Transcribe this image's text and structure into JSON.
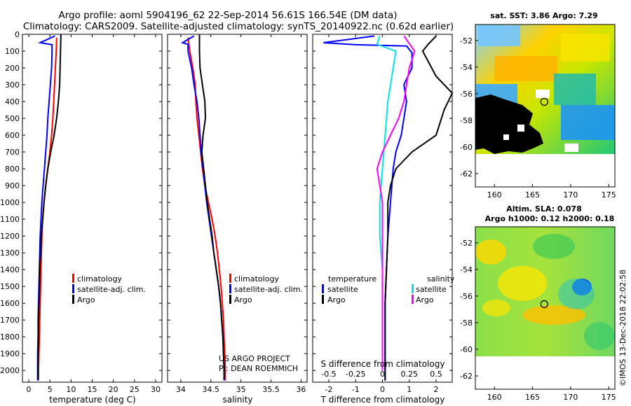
{
  "title_line1": "Argo profile: aoml 5904196_62 22-Sep-2014 56.61S 166.54E (DM data)",
  "title_line2": "Climatology: CARS2009. Satellite-adjusted climatology: synTS_20140922.nc (0.62d earlier)",
  "colors": {
    "climatology": "#ff0000",
    "satellite": "#0000ff",
    "argo": "#000000",
    "sat_salinity": "#00e5e5",
    "argo_salinity_diff": "#ff00ff"
  },
  "chart_data": [
    {
      "type": "line",
      "name": "temperature",
      "xlabel": "temperature (deg C)",
      "xlim": [
        -1.5,
        31.5
      ],
      "xticks": [
        0,
        5,
        10,
        15,
        20,
        25,
        30
      ],
      "ylim": [
        2070,
        0
      ],
      "yticks": [
        0,
        100,
        200,
        300,
        400,
        500,
        600,
        700,
        800,
        900,
        1000,
        1100,
        1200,
        1300,
        1400,
        1500,
        1600,
        1700,
        1800,
        1900,
        2000
      ],
      "legend": [
        "climatology",
        "satellite-adj. clim.",
        "Argo"
      ],
      "series": [
        {
          "name": "climatology",
          "color": "#ff0000",
          "points": [
            [
              6.6,
              20
            ],
            [
              6.5,
              100
            ],
            [
              6.3,
              200
            ],
            [
              6.1,
              300
            ],
            [
              5.9,
              400
            ],
            [
              5.7,
              500
            ],
            [
              5.4,
              600
            ],
            [
              5.0,
              700
            ],
            [
              4.5,
              800
            ],
            [
              4.0,
              900
            ],
            [
              3.6,
              1000
            ],
            [
              3.3,
              1100
            ],
            [
              3.1,
              1200
            ],
            [
              3.0,
              1300
            ],
            [
              2.9,
              1400
            ],
            [
              2.8,
              1500
            ],
            [
              2.7,
              1600
            ],
            [
              2.6,
              1700
            ],
            [
              2.5,
              1800
            ],
            [
              2.4,
              1900
            ],
            [
              2.3,
              2000
            ],
            [
              2.3,
              2060
            ]
          ]
        },
        {
          "name": "satellite-adj. clim.",
          "color": "#0000ff",
          "points": [
            [
              6.2,
              10
            ],
            [
              2.7,
              50
            ],
            [
              5.5,
              62
            ],
            [
              5.5,
              100
            ],
            [
              5.4,
              200
            ],
            [
              5.1,
              300
            ],
            [
              4.8,
              400
            ],
            [
              4.5,
              500
            ],
            [
              4.3,
              600
            ],
            [
              4.0,
              700
            ],
            [
              3.7,
              800
            ],
            [
              3.4,
              900
            ],
            [
              3.1,
              1000
            ],
            [
              2.9,
              1100
            ],
            [
              2.7,
              1200
            ],
            [
              2.6,
              1300
            ],
            [
              2.5,
              1400
            ],
            [
              2.4,
              1500
            ],
            [
              2.3,
              1600
            ],
            [
              2.2,
              1700
            ],
            [
              2.2,
              1800
            ],
            [
              2.1,
              1900
            ],
            [
              2.1,
              2000
            ],
            [
              2.1,
              2060
            ]
          ]
        },
        {
          "name": "Argo",
          "color": "#000000",
          "points": [
            [
              7.6,
              0
            ],
            [
              7.5,
              100
            ],
            [
              7.4,
              200
            ],
            [
              7.3,
              300
            ],
            [
              7.0,
              400
            ],
            [
              6.6,
              500
            ],
            [
              6.0,
              600
            ],
            [
              5.2,
              700
            ],
            [
              4.5,
              800
            ],
            [
              4.0,
              900
            ],
            [
              3.6,
              1000
            ],
            [
              3.3,
              1100
            ],
            [
              3.0,
              1200
            ],
            [
              2.8,
              1300
            ],
            [
              2.6,
              1400
            ],
            [
              2.5,
              1500
            ],
            [
              2.4,
              1600
            ],
            [
              2.3,
              1700
            ],
            [
              2.3,
              1800
            ],
            [
              2.2,
              1900
            ],
            [
              2.2,
              2000
            ],
            [
              2.2,
              2050
            ]
          ]
        }
      ]
    },
    {
      "type": "line",
      "name": "salinity",
      "xlabel": "salinity",
      "xlim": [
        33.78,
        36.1
      ],
      "xticks": [
        34,
        34.5,
        35,
        35.5,
        36
      ],
      "ylim": [
        2070,
        0
      ],
      "legend": [
        "climatology",
        "satellite-adj. clim.",
        "Argo"
      ],
      "annotation": [
        "US ARGO PROJECT",
        "PI: DEAN ROEMMICH"
      ],
      "series": [
        {
          "name": "climatology",
          "color": "#ff0000",
          "points": [
            [
              34.12,
              20
            ],
            [
              34.15,
              100
            ],
            [
              34.2,
              200
            ],
            [
              34.24,
              300
            ],
            [
              34.25,
              400
            ],
            [
              34.27,
              500
            ],
            [
              34.3,
              600
            ],
            [
              34.33,
              700
            ],
            [
              34.36,
              800
            ],
            [
              34.4,
              900
            ],
            [
              34.46,
              1000
            ],
            [
              34.52,
              1100
            ],
            [
              34.57,
              1200
            ],
            [
              34.61,
              1300
            ],
            [
              34.64,
              1400
            ],
            [
              34.67,
              1500
            ],
            [
              34.69,
              1600
            ],
            [
              34.71,
              1700
            ],
            [
              34.72,
              1800
            ],
            [
              34.73,
              1900
            ],
            [
              34.74,
              2000
            ],
            [
              34.74,
              2060
            ]
          ]
        },
        {
          "name": "satellite-adj. clim.",
          "color": "#0000ff",
          "points": [
            [
              34.22,
              10
            ],
            [
              34.03,
              50
            ],
            [
              34.12,
              60
            ],
            [
              34.12,
              100
            ],
            [
              34.18,
              200
            ],
            [
              34.22,
              300
            ],
            [
              34.27,
              400
            ],
            [
              34.3,
              500
            ],
            [
              34.32,
              600
            ],
            [
              34.34,
              700
            ],
            [
              34.37,
              800
            ],
            [
              34.4,
              900
            ],
            [
              34.43,
              1000
            ],
            [
              34.47,
              1100
            ],
            [
              34.51,
              1200
            ],
            [
              34.55,
              1300
            ],
            [
              34.59,
              1400
            ],
            [
              34.63,
              1500
            ],
            [
              34.66,
              1600
            ],
            [
              34.68,
              1700
            ],
            [
              34.7,
              1800
            ],
            [
              34.71,
              1900
            ],
            [
              34.72,
              2000
            ],
            [
              34.72,
              2060
            ]
          ]
        },
        {
          "name": "Argo",
          "color": "#000000",
          "points": [
            [
              34.31,
              0
            ],
            [
              34.31,
              100
            ],
            [
              34.32,
              200
            ],
            [
              34.36,
              300
            ],
            [
              34.4,
              400
            ],
            [
              34.41,
              500
            ],
            [
              34.37,
              600
            ],
            [
              34.35,
              700
            ],
            [
              34.38,
              800
            ],
            [
              34.41,
              900
            ],
            [
              34.44,
              1000
            ],
            [
              34.48,
              1100
            ],
            [
              34.52,
              1200
            ],
            [
              34.55,
              1300
            ],
            [
              34.59,
              1400
            ],
            [
              34.63,
              1500
            ],
            [
              34.66,
              1600
            ],
            [
              34.68,
              1700
            ],
            [
              34.7,
              1800
            ],
            [
              34.71,
              1900
            ],
            [
              34.72,
              2000
            ],
            [
              34.72,
              2050
            ]
          ]
        }
      ]
    },
    {
      "type": "line",
      "name": "difference",
      "xlabel": "T difference from climatology",
      "xlabel_top": "S difference from climatology",
      "xlim": [
        -2.6,
        2.6
      ],
      "xticks": [
        -2,
        -1,
        0,
        1,
        2
      ],
      "xticks_top": [
        {
          "v": -0.5,
          "label": "-0.5"
        },
        {
          "v": -0.25,
          "label": "-0.25"
        },
        {
          "v": 0,
          "label": "0"
        },
        {
          "v": 0.25,
          "label": "0.25"
        },
        {
          "v": 0.5,
          "label": "0.5"
        }
      ],
      "ylim": [
        2070,
        0
      ],
      "legend_left": {
        "title": "temperature",
        "items": [
          "satellite",
          "Argo"
        ]
      },
      "legend_right": {
        "title": "salinity",
        "items": [
          "satellite",
          "Argo"
        ]
      },
      "series": [
        {
          "name": "temperature satellite",
          "color": "#0000ff",
          "points": [
            [
              -0.3,
              10
            ],
            [
              -2.2,
              50
            ],
            [
              -1.0,
              62
            ],
            [
              0.9,
              70
            ],
            [
              1.1,
              110
            ],
            [
              1.1,
              200
            ],
            [
              0.8,
              300
            ],
            [
              0.9,
              400
            ],
            [
              0.8,
              500
            ],
            [
              0.7,
              600
            ],
            [
              0.5,
              700
            ],
            [
              0.4,
              800
            ],
            [
              0.3,
              1000
            ],
            [
              0.2,
              1200
            ],
            [
              0.15,
              1400
            ],
            [
              0.1,
              1600
            ],
            [
              0.1,
              1800
            ],
            [
              0.1,
              2000
            ],
            [
              0.1,
              2060
            ]
          ]
        },
        {
          "name": "temperature Argo",
          "color": "#000000",
          "points": [
            [
              2.0,
              10
            ],
            [
              1.7,
              60
            ],
            [
              1.5,
              100
            ],
            [
              2.0,
              250
            ],
            [
              2.6,
              350
            ],
            [
              2.3,
              450
            ],
            [
              2.0,
              600
            ],
            [
              1.1,
              700
            ],
            [
              0.5,
              800
            ],
            [
              0.3,
              900
            ],
            [
              0.2,
              1000
            ],
            [
              0.2,
              1200
            ],
            [
              0.15,
              1400
            ],
            [
              0.1,
              1600
            ],
            [
              0.1,
              1800
            ],
            [
              0.1,
              2000
            ],
            [
              0.1,
              2060
            ]
          ]
        },
        {
          "name": "salinity satellite",
          "color": "#00e5e5",
          "points": [
            [
              -0.1,
              10
            ],
            [
              -0.2,
              60
            ],
            [
              0.5,
              100
            ],
            [
              0.4,
              200
            ],
            [
              0.3,
              300
            ],
            [
              0.2,
              400
            ],
            [
              0.1,
              600
            ],
            [
              0.0,
              800
            ],
            [
              -0.1,
              1000
            ],
            [
              -0.1,
              1200
            ],
            [
              0.0,
              1400
            ],
            [
              0.0,
              1600
            ],
            [
              0.0,
              1800
            ],
            [
              0.0,
              2000
            ]
          ]
        },
        {
          "name": "salinity Argo",
          "color": "#ff00ff",
          "points": [
            [
              0.8,
              10
            ],
            [
              1.2,
              100
            ],
            [
              1.0,
              200
            ],
            [
              0.9,
              300
            ],
            [
              0.8,
              400
            ],
            [
              0.6,
              500
            ],
            [
              0.3,
              600
            ],
            [
              0.0,
              700
            ],
            [
              -0.2,
              800
            ],
            [
              -0.1,
              900
            ],
            [
              0.0,
              1000
            ],
            [
              0.0,
              1200
            ],
            [
              0.0,
              1400
            ],
            [
              0.0,
              1600
            ],
            [
              0.0,
              1800
            ],
            [
              0.0,
              2000
            ]
          ]
        }
      ]
    },
    {
      "type": "heatmap",
      "name": "sst-map",
      "title": "sat. SST: 3.86 Argo: 7.29",
      "xlim": [
        157.5,
        175.8
      ],
      "ylim": [
        -63,
        -50.8
      ],
      "xticks": [
        160,
        165,
        170,
        175
      ],
      "yticks": [
        -52,
        -54,
        -56,
        -58,
        -60,
        -62
      ],
      "float_position": [
        166.54,
        -56.61
      ]
    },
    {
      "type": "heatmap",
      "name": "sla-map",
      "title_line1": "Altim. SLA: 0.078",
      "title_line2": "Argo h1000: 0.12 h2000: 0.18",
      "xlim": [
        157.5,
        175.8
      ],
      "ylim": [
        -63,
        -50.8
      ],
      "xticks": [
        160,
        165,
        170,
        175
      ],
      "yticks": [
        -52,
        -54,
        -56,
        -58,
        -60,
        -62
      ],
      "float_position": [
        166.54,
        -56.61
      ]
    }
  ],
  "watermark": "©IMOS 13-Dec-2018 22:02:58"
}
